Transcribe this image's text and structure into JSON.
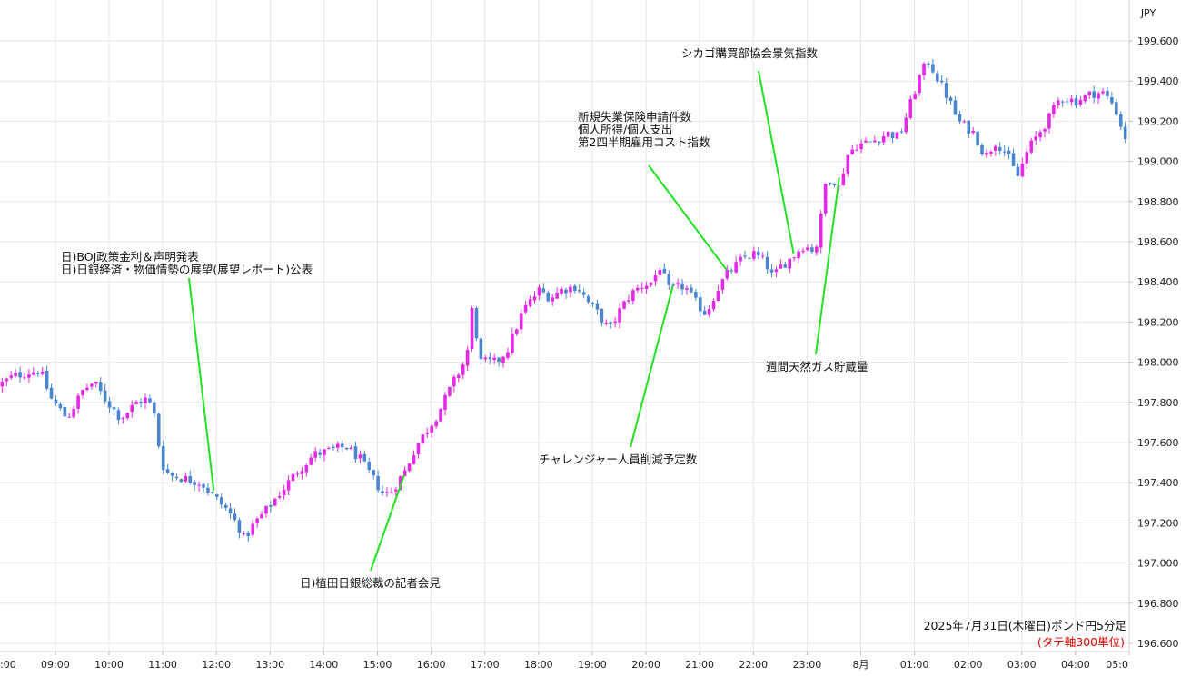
{
  "chart_data": {
    "type": "candlestick",
    "currency_label": "JPY",
    "y_ticks": [
      "199.600",
      "199.400",
      "199.200",
      "199.000",
      "198.800",
      "198.600",
      "198.400",
      "198.200",
      "198.000",
      "197.800",
      "197.600",
      "197.400",
      "197.200",
      "197.000",
      "196.800",
      "196.600"
    ],
    "ylim": [
      196.6,
      199.75
    ],
    "x_ticks": [
      {
        "label": ":00",
        "t": 7
      },
      {
        "label": "09:00",
        "t": 9
      },
      {
        "label": "10:00",
        "t": 10
      },
      {
        "label": "11:00",
        "t": 11
      },
      {
        "label": "12:00",
        "t": 12
      },
      {
        "label": "13:00",
        "t": 13
      },
      {
        "label": "14:00",
        "t": 14
      },
      {
        "label": "15:00",
        "t": 15
      },
      {
        "label": "16:00",
        "t": 16
      },
      {
        "label": "17:00",
        "t": 17
      },
      {
        "label": "18:00",
        "t": 18
      },
      {
        "label": "19:00",
        "t": 19
      },
      {
        "label": "20:00",
        "t": 20
      },
      {
        "label": "21:00",
        "t": 21
      },
      {
        "label": "22:00",
        "t": 22
      },
      {
        "label": "23:00",
        "t": 23
      },
      {
        "label": "8月",
        "t": 24
      },
      {
        "label": "01:00",
        "t": 25
      },
      {
        "label": "02:00",
        "t": 26
      },
      {
        "label": "03:00",
        "t": 27
      },
      {
        "label": "04:00",
        "t": 28
      },
      {
        "label": "05:0",
        "t": 29
      }
    ],
    "xlim": [
      7.97,
      29.0
    ],
    "price_path": [
      [
        8.0,
        197.88
      ],
      [
        8.3,
        197.93
      ],
      [
        8.6,
        197.95
      ],
      [
        8.8,
        197.96
      ],
      [
        9.0,
        197.82
      ],
      [
        9.3,
        197.72
      ],
      [
        9.6,
        197.86
      ],
      [
        9.8,
        197.9
      ],
      [
        10.0,
        197.82
      ],
      [
        10.3,
        197.72
      ],
      [
        10.6,
        197.8
      ],
      [
        10.8,
        197.82
      ],
      [
        10.95,
        197.72
      ],
      [
        11.05,
        197.5
      ],
      [
        11.2,
        197.44
      ],
      [
        11.5,
        197.42
      ],
      [
        11.8,
        197.4
      ],
      [
        12.0,
        197.34
      ],
      [
        12.15,
        197.3
      ],
      [
        12.3,
        197.26
      ],
      [
        12.5,
        197.18
      ],
      [
        12.6,
        197.12
      ],
      [
        12.8,
        197.2
      ],
      [
        13.0,
        197.26
      ],
      [
        13.3,
        197.36
      ],
      [
        13.6,
        197.46
      ],
      [
        13.9,
        197.54
      ],
      [
        14.2,
        197.56
      ],
      [
        14.5,
        197.58
      ],
      [
        14.75,
        197.52
      ],
      [
        14.95,
        197.44
      ],
      [
        15.2,
        197.34
      ],
      [
        15.35,
        197.36
      ],
      [
        15.6,
        197.46
      ],
      [
        15.8,
        197.58
      ],
      [
        16.0,
        197.66
      ],
      [
        16.2,
        197.74
      ],
      [
        16.5,
        197.9
      ],
      [
        16.7,
        198.0
      ],
      [
        16.8,
        198.1
      ],
      [
        16.85,
        198.28
      ],
      [
        17.0,
        198.0
      ],
      [
        17.3,
        198.0
      ],
      [
        17.5,
        198.06
      ],
      [
        17.8,
        198.26
      ],
      [
        18.1,
        198.36
      ],
      [
        18.3,
        198.32
      ],
      [
        18.5,
        198.36
      ],
      [
        18.8,
        198.38
      ],
      [
        19.0,
        198.3
      ],
      [
        19.2,
        198.24
      ],
      [
        19.4,
        198.16
      ],
      [
        19.6,
        198.26
      ],
      [
        19.8,
        198.34
      ],
      [
        20.0,
        198.38
      ],
      [
        20.2,
        198.4
      ],
      [
        20.35,
        198.48
      ],
      [
        20.5,
        198.36
      ],
      [
        20.8,
        198.38
      ],
      [
        21.0,
        198.3
      ],
      [
        21.2,
        198.24
      ],
      [
        21.4,
        198.36
      ],
      [
        21.6,
        198.44
      ],
      [
        21.9,
        198.52
      ],
      [
        22.1,
        198.54
      ],
      [
        22.3,
        198.5
      ],
      [
        22.45,
        198.42
      ],
      [
        22.6,
        198.48
      ],
      [
        22.8,
        198.52
      ],
      [
        23.0,
        198.58
      ],
      [
        23.2,
        198.56
      ],
      [
        23.3,
        198.6
      ],
      [
        23.4,
        198.88
      ],
      [
        23.55,
        198.92
      ],
      [
        23.7,
        198.86
      ],
      [
        23.8,
        199.02
      ],
      [
        24.0,
        199.08
      ],
      [
        24.3,
        199.1
      ],
      [
        24.6,
        199.14
      ],
      [
        24.8,
        199.12
      ],
      [
        25.0,
        199.28
      ],
      [
        25.2,
        199.44
      ],
      [
        25.35,
        199.5
      ],
      [
        25.5,
        199.42
      ],
      [
        25.7,
        199.32
      ],
      [
        25.9,
        199.2
      ],
      [
        26.2,
        199.14
      ],
      [
        26.4,
        199.02
      ],
      [
        26.6,
        199.1
      ],
      [
        26.8,
        199.04
      ],
      [
        27.0,
        198.92
      ],
      [
        27.2,
        199.06
      ],
      [
        27.4,
        199.14
      ],
      [
        27.6,
        199.22
      ],
      [
        27.8,
        199.32
      ],
      [
        28.1,
        199.3
      ],
      [
        28.4,
        199.34
      ],
      [
        28.6,
        199.34
      ],
      [
        28.8,
        199.28
      ],
      [
        29.0,
        199.12
      ]
    ],
    "colors": {
      "up": "#e629e6",
      "down": "#4a86cf",
      "annotation_line": "#22e022",
      "grid": "#e6e6e6"
    },
    "annotations": [
      {
        "lines": [
          "日)BOJ政策金利＆声明発表",
          "日)日銀経済・物価情勢の展望(展望レポート)公表"
        ],
        "t": 11.95,
        "price": 197.36
      },
      {
        "lines": [
          "日)植田日銀総裁の記者会見"
        ],
        "t": 15.5,
        "price": 197.44
      },
      {
        "lines": [
          "チャレンジャー人員削減予定数"
        ],
        "t": 20.5,
        "price": 198.38
      },
      {
        "lines": [
          "新規失業保険申請件数",
          "個人所得/個人支出",
          "第2四半期雇用コスト指数"
        ],
        "t": 21.5,
        "price": 198.46
      },
      {
        "lines": [
          "シカゴ購買部協会景気指数"
        ],
        "t": 22.75,
        "price": 198.54
      },
      {
        "lines": [
          "週間天然ガス貯蔵量"
        ],
        "t": 23.6,
        "price": 198.92
      }
    ],
    "caption": "2025年7月31日(木曜日)ポンド円5分足",
    "caption_note": "(タテ軸300単位)"
  }
}
